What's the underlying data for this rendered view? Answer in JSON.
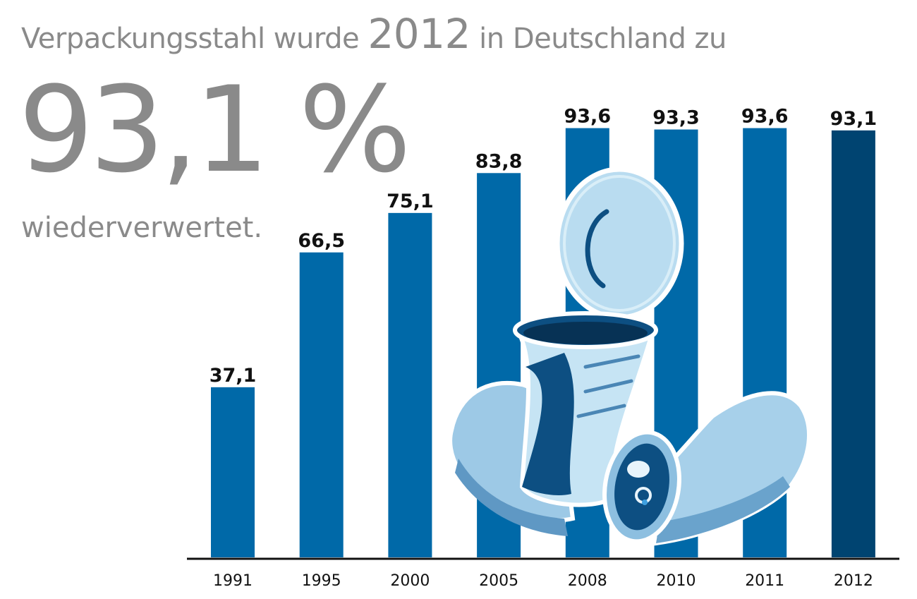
{
  "headline": {
    "prefix": "Verpackungsstahl wurde",
    "year": "2012",
    "suffix": "in Deutschland zu"
  },
  "big_value": "93,1 %",
  "subline": "wiederverwertet.",
  "colors": {
    "bar": "#0069a8",
    "highlight_bar": "#004471",
    "text_gray": "#8a8a8a",
    "axis": "#111111"
  },
  "chart_data": {
    "type": "bar",
    "categories": [
      "1991",
      "1995",
      "2000",
      "2005",
      "2008",
      "2010",
      "2011",
      "2012"
    ],
    "values": [
      37.1,
      66.5,
      75.1,
      83.8,
      93.6,
      93.3,
      93.6,
      93.1
    ],
    "data_labels": [
      "37,1",
      "66,5",
      "75,1",
      "83,8",
      "93,6",
      "93,3",
      "93,6",
      "93,1"
    ],
    "highlight_index": 7,
    "title": "",
    "xlabel": "",
    "ylabel": "",
    "ylim": [
      0,
      100
    ],
    "grid": false
  }
}
